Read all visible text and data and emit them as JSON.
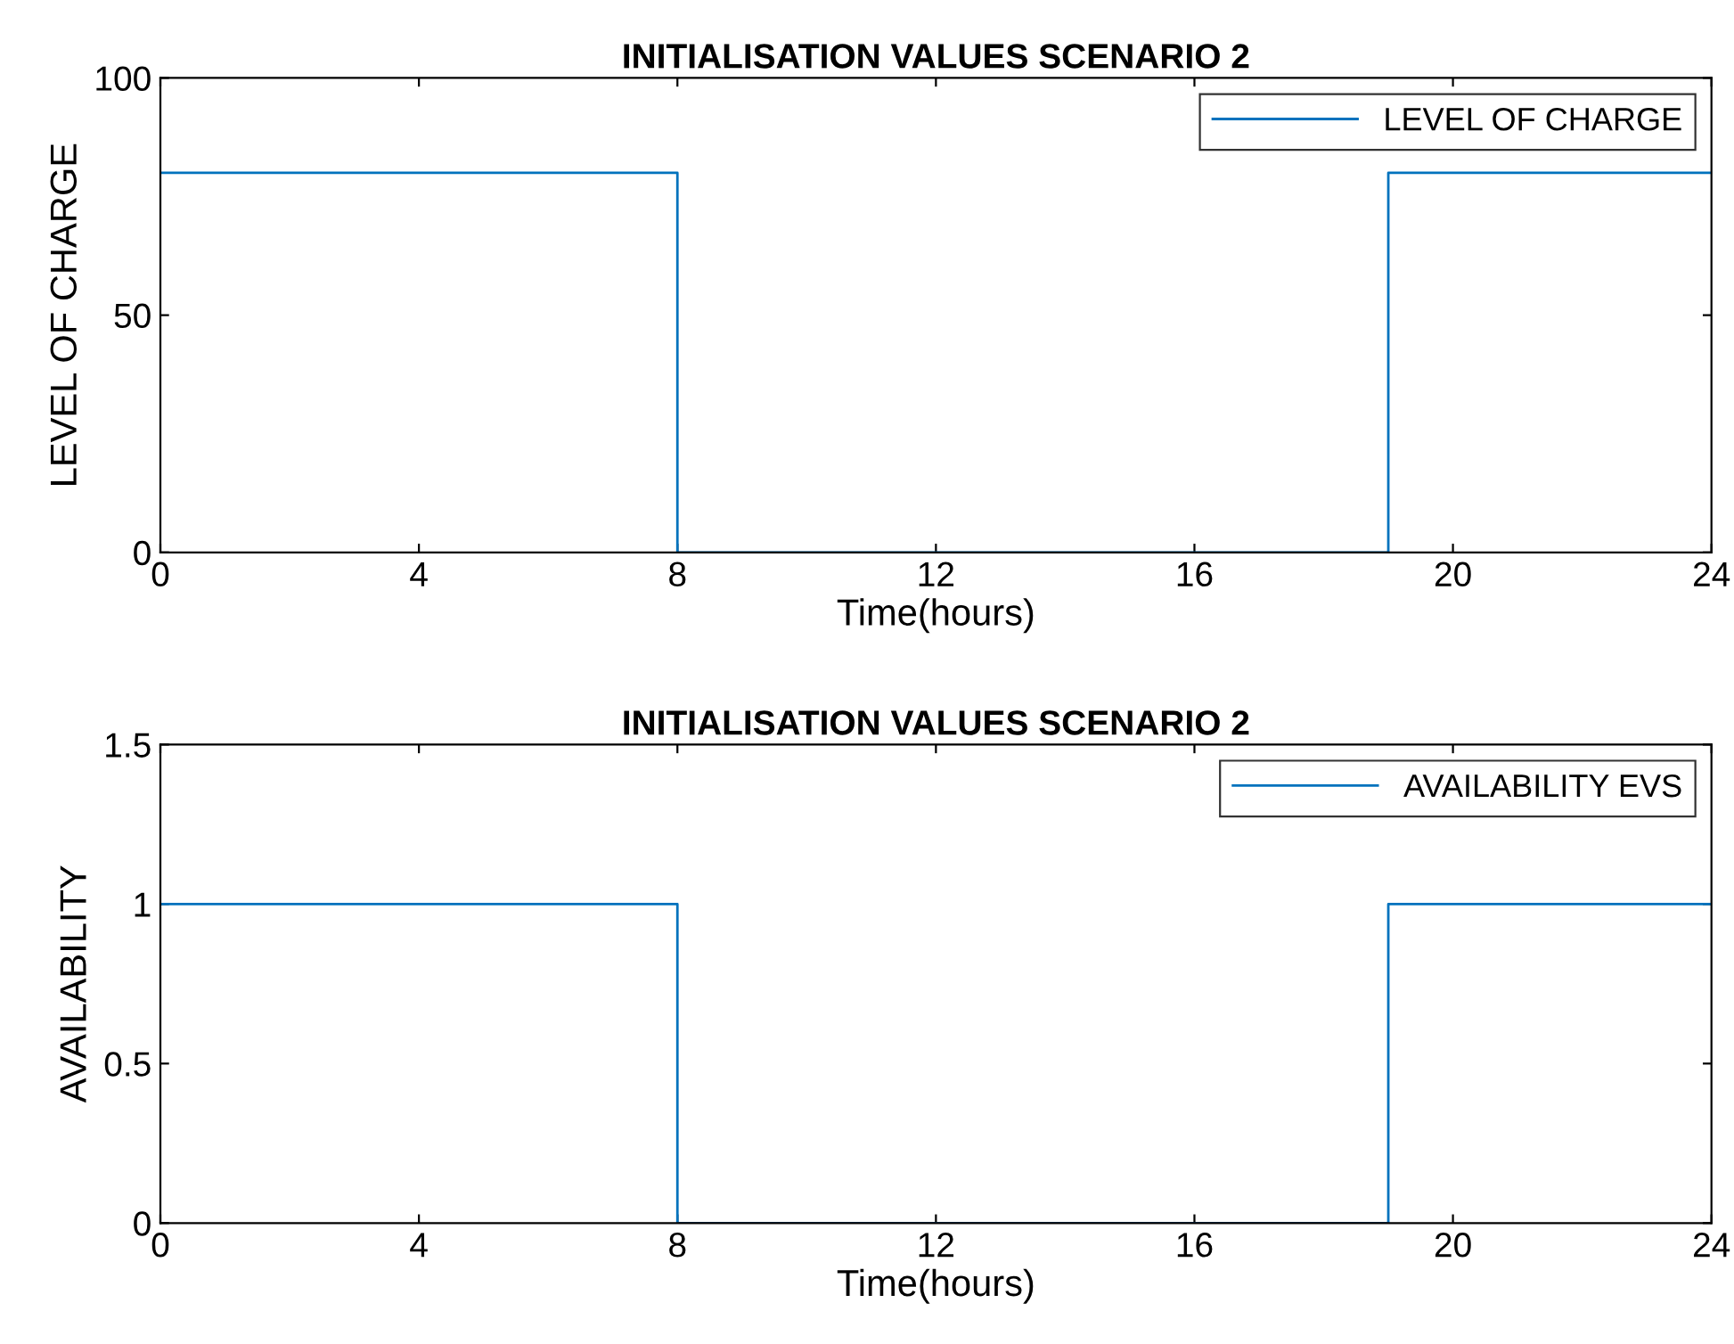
{
  "chart_data": [
    {
      "type": "line",
      "title": "INITIALISATION VALUES SCENARIO 2",
      "xlabel": "Time(hours)",
      "ylabel": "LEVEL OF CHARGE",
      "x": [
        0,
        8,
        8,
        19,
        19,
        24
      ],
      "series": [
        {
          "name": "LEVEL OF CHARGE",
          "color": "#0072bd",
          "values": [
            80,
            80,
            0,
            0,
            80,
            80
          ]
        }
      ],
      "xlim": [
        0,
        24
      ],
      "xticks": [
        0,
        4,
        8,
        12,
        16,
        20,
        24
      ],
      "ylim": [
        0,
        100
      ],
      "yticks": [
        0,
        50,
        100
      ],
      "legend": "top right",
      "grid": false
    },
    {
      "type": "line",
      "title": "INITIALISATION VALUES SCENARIO 2",
      "xlabel": "Time(hours)",
      "ylabel": "AVAILABILITY",
      "x": [
        0,
        8,
        8,
        19,
        19,
        24
      ],
      "series": [
        {
          "name": "AVAILABILITY EVS",
          "color": "#0072bd",
          "values": [
            1,
            1,
            0,
            0,
            1,
            1
          ]
        }
      ],
      "xlim": [
        0,
        24
      ],
      "xticks": [
        0,
        4,
        8,
        12,
        16,
        20,
        24
      ],
      "ylim": [
        0,
        1.5
      ],
      "yticks": [
        0,
        0.5,
        1,
        1.5
      ],
      "legend": "top right",
      "grid": false
    }
  ]
}
